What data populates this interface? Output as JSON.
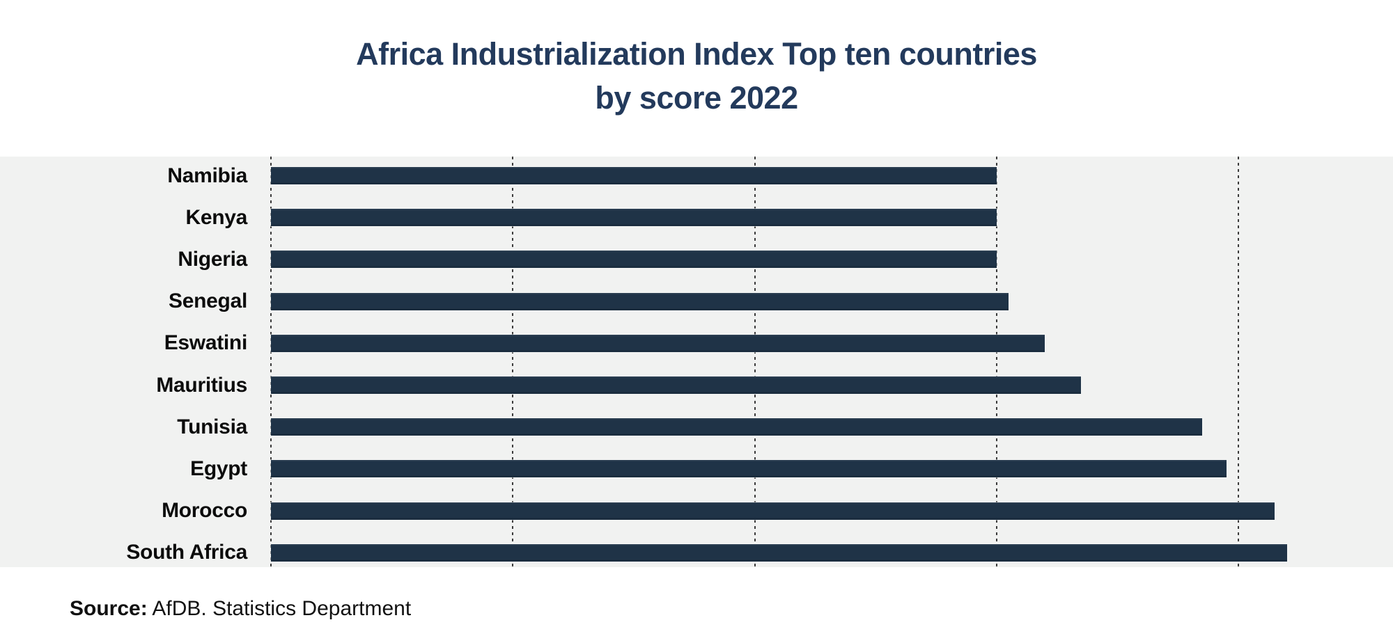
{
  "title": {
    "line1": "Africa Industrialization Index Top ten countries",
    "line2": "by score 2022"
  },
  "source": {
    "label": "Source:",
    "text": " AfDB. Statistics Department"
  },
  "colors": {
    "bar": "#1f3347",
    "band_background": "#f1f2f1",
    "title_text": "#233a5c",
    "label_text": "#0c0c0c",
    "gridline": "#3c3c3c"
  },
  "chart_data": {
    "type": "bar",
    "orientation": "horizontal",
    "title": "Africa Industrialization Index Top ten countries by score 2022",
    "categories": [
      "Namibia",
      "Kenya",
      "Nigeria",
      "Senegal",
      "Eswatini",
      "Mauritius",
      "Tunisia",
      "Egypt",
      "Morocco",
      "South Africa"
    ],
    "values": [
      0.6,
      0.6,
      0.6,
      0.61,
      0.64,
      0.67,
      0.77,
      0.79,
      0.83,
      0.84
    ],
    "xlabel": "",
    "ylabel": "",
    "xlim": [
      0,
      0.93
    ],
    "gridline_values": [
      0,
      0.2,
      0.4,
      0.6,
      0.8
    ],
    "grid": "vertical-dashed",
    "value_axis_tick_labels_visible": false,
    "data_labels_visible": false,
    "legend": "none",
    "source": "Source: AfDB. Statistics Department"
  }
}
